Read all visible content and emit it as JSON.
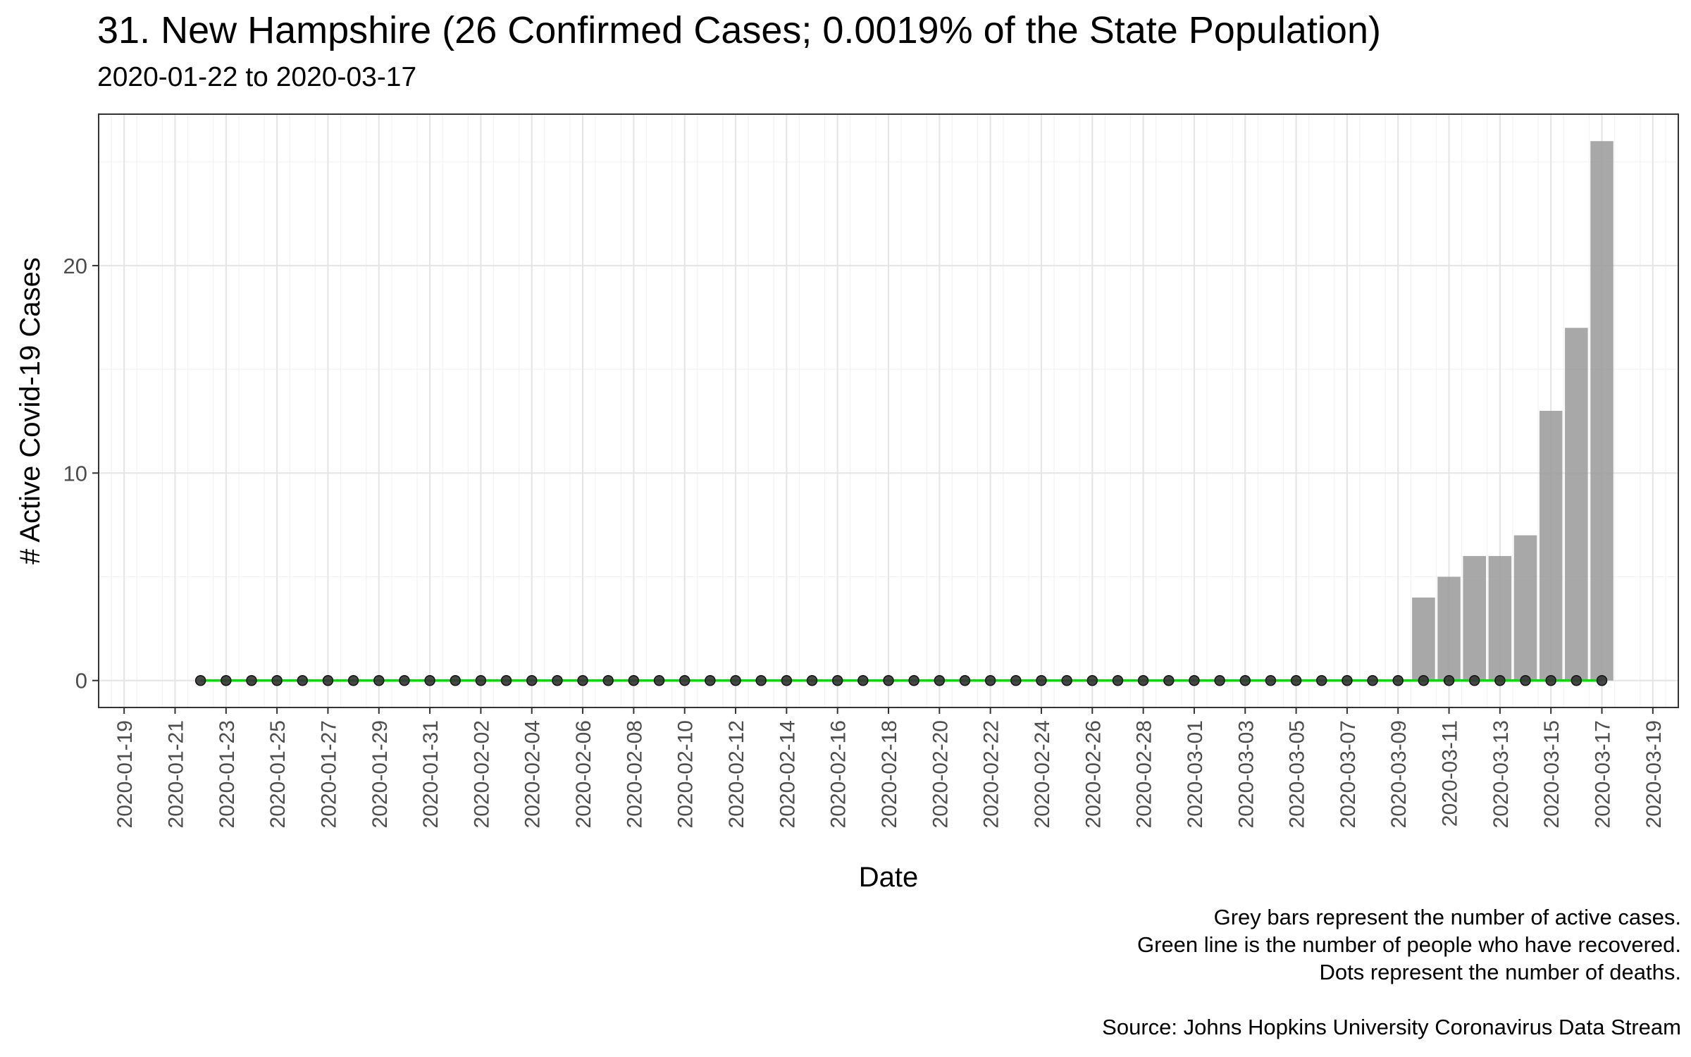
{
  "chart_data": {
    "type": "bar",
    "title": "31. New Hampshire (26 Confirmed Cases; 0.0019% of the State Population)",
    "subtitle": "2020-01-22 to 2020-03-17",
    "xlabel": "Date",
    "ylabel": "# Active Covid-19 Cases",
    "xlim": [
      "2020-01-18",
      "2020-03-20"
    ],
    "ylim": [
      -1.3,
      27.3
    ],
    "x_ticks": [
      "2020-01-19",
      "2020-01-21",
      "2020-01-23",
      "2020-01-25",
      "2020-01-27",
      "2020-01-29",
      "2020-01-31",
      "2020-02-02",
      "2020-02-04",
      "2020-02-06",
      "2020-02-08",
      "2020-02-10",
      "2020-02-12",
      "2020-02-14",
      "2020-02-16",
      "2020-02-18",
      "2020-02-20",
      "2020-02-22",
      "2020-02-24",
      "2020-02-26",
      "2020-02-28",
      "2020-03-01",
      "2020-03-03",
      "2020-03-05",
      "2020-03-07",
      "2020-03-09",
      "2020-03-11",
      "2020-03-13",
      "2020-03-15",
      "2020-03-17",
      "2020-03-19"
    ],
    "y_ticks": [
      0,
      10,
      20
    ],
    "grid": true,
    "start_date": "2020-01-22",
    "series": [
      {
        "name": "Active cases",
        "mark": "bar",
        "color": "#999999",
        "values": [
          0,
          0,
          0,
          0,
          0,
          0,
          0,
          0,
          0,
          0,
          0,
          0,
          0,
          0,
          0,
          0,
          0,
          0,
          0,
          0,
          0,
          0,
          0,
          0,
          0,
          0,
          0,
          0,
          0,
          0,
          0,
          0,
          0,
          0,
          0,
          0,
          0,
          0,
          0,
          0,
          0,
          0,
          0,
          0,
          0,
          0,
          0,
          0,
          4,
          5,
          6,
          6,
          7,
          13,
          17,
          26
        ]
      },
      {
        "name": "Recovered",
        "mark": "line",
        "color": "#00dd00",
        "values": [
          0,
          0,
          0,
          0,
          0,
          0,
          0,
          0,
          0,
          0,
          0,
          0,
          0,
          0,
          0,
          0,
          0,
          0,
          0,
          0,
          0,
          0,
          0,
          0,
          0,
          0,
          0,
          0,
          0,
          0,
          0,
          0,
          0,
          0,
          0,
          0,
          0,
          0,
          0,
          0,
          0,
          0,
          0,
          0,
          0,
          0,
          0,
          0,
          0,
          0,
          0,
          0,
          0,
          0,
          0,
          0
        ]
      },
      {
        "name": "Deaths",
        "mark": "point",
        "color": "#333333",
        "values": [
          0,
          0,
          0,
          0,
          0,
          0,
          0,
          0,
          0,
          0,
          0,
          0,
          0,
          0,
          0,
          0,
          0,
          0,
          0,
          0,
          0,
          0,
          0,
          0,
          0,
          0,
          0,
          0,
          0,
          0,
          0,
          0,
          0,
          0,
          0,
          0,
          0,
          0,
          0,
          0,
          0,
          0,
          0,
          0,
          0,
          0,
          0,
          0,
          0,
          0,
          0,
          0,
          0,
          0,
          0,
          0
        ]
      }
    ],
    "caption": [
      "Grey bars represent the number of active cases.",
      "Green line is the number of people who have recovered.",
      "Dots represent the number of deaths.",
      "",
      "Source: Johns Hopkins University Coronavirus Data Stream"
    ]
  }
}
